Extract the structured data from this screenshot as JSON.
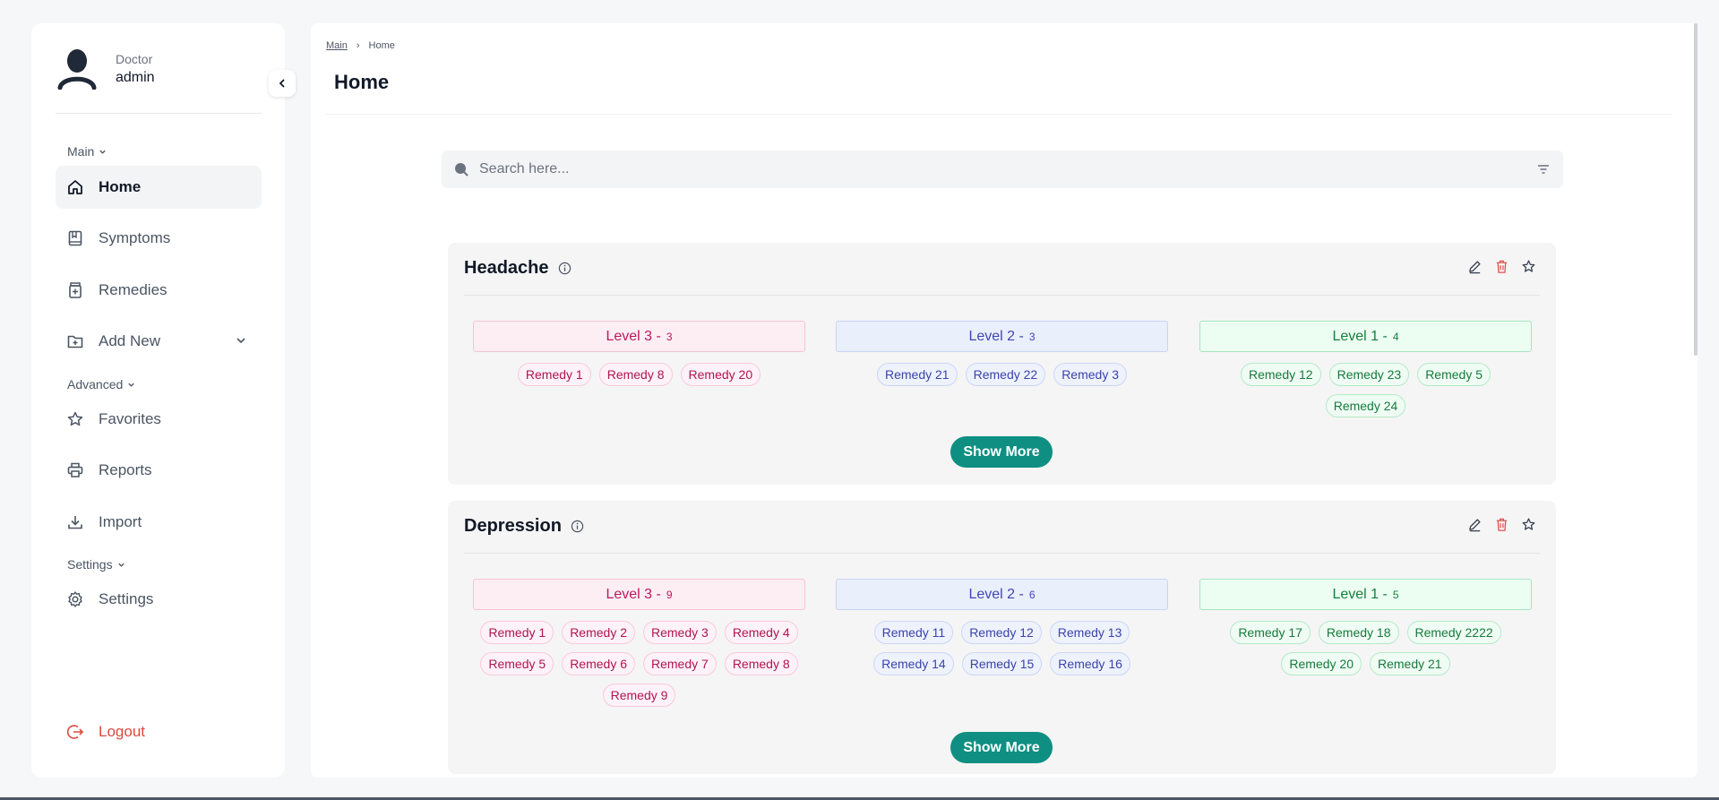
{
  "user": {
    "role": "Doctor",
    "name": "admin"
  },
  "sidebar": {
    "sections": {
      "main": "Main",
      "advanced": "Advanced",
      "settings": "Settings"
    },
    "items": {
      "home": "Home",
      "symptoms": "Symptoms",
      "remedies": "Remedies",
      "add_new": "Add New",
      "favorites": "Favorites",
      "reports": "Reports",
      "import": "Import",
      "settings": "Settings",
      "logout": "Logout"
    }
  },
  "breadcrumb": {
    "root": "Main",
    "separator": "›",
    "current": "Home"
  },
  "page": {
    "title": "Home"
  },
  "search": {
    "placeholder": "Search here..."
  },
  "colors": {
    "accent": "#0e8f82",
    "logout": "#dc4a3d",
    "delete": "#e05252"
  },
  "cards": [
    {
      "title": "Headache",
      "show_more": "Show More",
      "levels": [
        {
          "label": "Level 3",
          "sep": "-",
          "count": "3",
          "remedies": [
            "Remedy 1",
            "Remedy 8",
            "Remedy 20"
          ]
        },
        {
          "label": "Level 2",
          "sep": "-",
          "count": "3",
          "remedies": [
            "Remedy 21",
            "Remedy 22",
            "Remedy 3"
          ]
        },
        {
          "label": "Level 1",
          "sep": "-",
          "count": "4",
          "remedies": [
            "Remedy 12",
            "Remedy 23",
            "Remedy 5",
            "Remedy 24"
          ]
        }
      ]
    },
    {
      "title": "Depression",
      "show_more": "Show More",
      "levels": [
        {
          "label": "Level 3",
          "sep": "-",
          "count": "9",
          "remedies": [
            "Remedy 1",
            "Remedy 2",
            "Remedy 3",
            "Remedy 4",
            "Remedy 5",
            "Remedy 6",
            "Remedy 7",
            "Remedy 8",
            "Remedy 9"
          ]
        },
        {
          "label": "Level 2",
          "sep": "-",
          "count": "6",
          "remedies": [
            "Remedy 11",
            "Remedy 12",
            "Remedy 13",
            "Remedy 14",
            "Remedy 15",
            "Remedy 16"
          ]
        },
        {
          "label": "Level 1",
          "sep": "-",
          "count": "5",
          "remedies": [
            "Remedy 17",
            "Remedy 18",
            "Remedy 2222",
            "Remedy 20",
            "Remedy 21"
          ]
        }
      ]
    }
  ]
}
